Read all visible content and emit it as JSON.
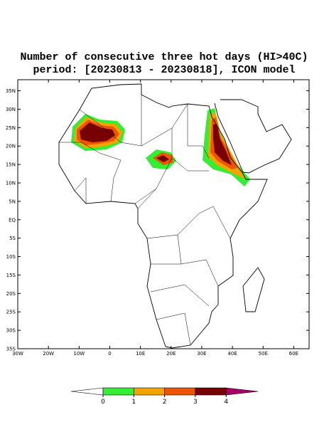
{
  "title": [
    "Number of consecutive three hot days (HI>40C)",
    "period: [20230813 - 20230818], ICON model"
  ],
  "map": {
    "xlim": [
      -30,
      65
    ],
    "ylim": [
      -35,
      38
    ],
    "lat_ticks": [
      {
        "value": 35,
        "label": "35N"
      },
      {
        "value": 30,
        "label": "30N"
      },
      {
        "value": 25,
        "label": "25N"
      },
      {
        "value": 20,
        "label": "20N"
      },
      {
        "value": 15,
        "label": "15N"
      },
      {
        "value": 10,
        "label": "10N"
      },
      {
        "value": 5,
        "label": "5N"
      },
      {
        "value": 0,
        "label": "EQ"
      },
      {
        "value": -5,
        "label": "5S"
      },
      {
        "value": -10,
        "label": "10S"
      },
      {
        "value": -15,
        "label": "15S"
      },
      {
        "value": -20,
        "label": "20S"
      },
      {
        "value": -25,
        "label": "25S"
      },
      {
        "value": -30,
        "label": "30S"
      },
      {
        "value": -35,
        "label": "35S"
      }
    ],
    "lon_ticks": [
      {
        "value": -30,
        "label": "30W"
      },
      {
        "value": -20,
        "label": "20W"
      },
      {
        "value": -10,
        "label": "10W"
      },
      0,
      {
        "value": 10,
        "label": "10E"
      },
      {
        "value": 20,
        "label": "20E"
      },
      {
        "value": 30,
        "label": "30E"
      },
      {
        "value": 40,
        "label": "40E"
      },
      {
        "value": 50,
        "label": "50E"
      },
      {
        "value": 60,
        "label": "60E"
      }
    ]
  },
  "colorbar": {
    "ticks": [
      0,
      1,
      2,
      3,
      4
    ],
    "colors": [
      "#ffffff",
      "#33ee33",
      "#f5a300",
      "#ee5500",
      "#770000",
      "#aa0066"
    ]
  }
}
